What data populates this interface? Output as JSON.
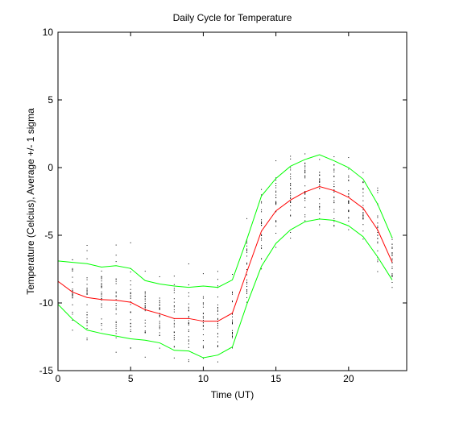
{
  "chart_data": {
    "type": "line",
    "title": "Daily Cycle for Temperature",
    "xlabel": "Time (UT)",
    "ylabel": "Temperature (Celcius), Average +/- 1 sigma",
    "xlim": [
      0,
      24
    ],
    "ylim": [
      -15,
      10
    ],
    "xticks": [
      0,
      5,
      10,
      15,
      20
    ],
    "yticks": [
      -15,
      -10,
      -5,
      0,
      5,
      10
    ],
    "grid": false,
    "x": [
      0,
      1,
      2,
      3,
      4,
      5,
      6,
      7,
      8,
      9,
      10,
      11,
      12,
      13,
      14,
      15,
      16,
      17,
      18,
      19,
      20,
      21,
      22,
      23
    ],
    "series": [
      {
        "role": "upper",
        "color": "#00ff00",
        "values": [
          -6.9,
          -7.0,
          -7.1,
          -7.35,
          -7.25,
          -7.45,
          -8.35,
          -8.6,
          -8.75,
          -8.85,
          -8.75,
          -8.85,
          -8.3,
          -5.3,
          -2.1,
          -0.8,
          0.1,
          0.6,
          0.95,
          0.5,
          0.0,
          -0.85,
          -2.7,
          -5.2
        ]
      },
      {
        "role": "average",
        "color": "#ff0000",
        "values": [
          -8.4,
          -9.2,
          -9.6,
          -9.75,
          -9.8,
          -9.95,
          -10.5,
          -10.8,
          -11.15,
          -11.15,
          -11.35,
          -11.35,
          -10.75,
          -7.7,
          -4.7,
          -3.2,
          -2.4,
          -1.8,
          -1.4,
          -1.7,
          -2.2,
          -3.0,
          -4.6,
          -7.0
        ]
      },
      {
        "role": "lower",
        "color": "#00ff00",
        "values": [
          -10.1,
          -11.2,
          -12.0,
          -12.25,
          -12.45,
          -12.65,
          -12.75,
          -12.95,
          -13.5,
          -13.55,
          -14.05,
          -13.85,
          -13.25,
          -10.1,
          -7.3,
          -5.6,
          -4.6,
          -4.0,
          -3.8,
          -3.9,
          -4.3,
          -5.1,
          -6.6,
          -8.3
        ]
      }
    ],
    "scatter_color": "#000000"
  }
}
